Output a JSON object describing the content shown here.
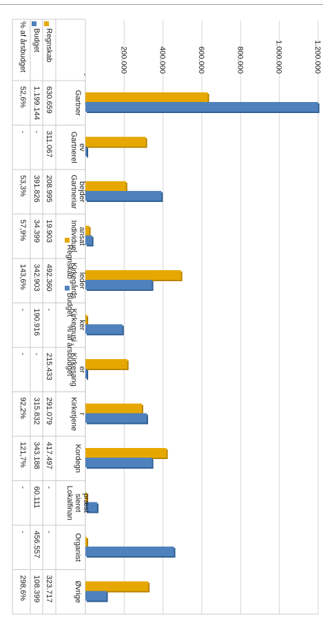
{
  "chart_data": {
    "type": "bar",
    "orientation": "rotated-90",
    "categories": [
      "Gartner",
      "Gartnerel ev",
      "Gartneriar bejder",
      "Individuel ansat",
      "Kirkegårds leder",
      "Kirkemusi ker",
      "Kirkesang er",
      "Kirketjene r",
      "Kordegn",
      "Lokalfinan sieret præst",
      "Organist",
      "Øvrige"
    ],
    "series": [
      {
        "name": "Regnskab",
        "color": "#e6a800",
        "values": [
          630659,
          311067,
          208995,
          19903,
          492360,
          0,
          215433,
          291079,
          417497,
          0,
          0,
          323717
        ]
      },
      {
        "name": "Budget",
        "color": "#4f81bd",
        "values": [
          1199144,
          0,
          391826,
          34399,
          342903,
          190916,
          0,
          315832,
          343188,
          60111,
          456557,
          108399
        ]
      }
    ],
    "ylim": [
      0,
      1200000
    ],
    "yticks": [
      "-",
      "200.000",
      "400.000",
      "600.000",
      "800.000",
      "1.000.000",
      "1.200.000"
    ],
    "grid": true,
    "legend": {
      "position": "bottom",
      "entries": [
        "Regnskab",
        "Budget",
        "% af årsbudget"
      ]
    },
    "table": {
      "row_labels": [
        "Regnskab",
        "Budget",
        "% af årsbudget"
      ],
      "rows": [
        [
          "630.659",
          "311.067",
          "208.995",
          "19.903",
          "492.360",
          "-",
          "215.433",
          "291.079",
          "417.497",
          "-",
          "-",
          "323.717"
        ],
        [
          "1.199.144",
          "-",
          "391.826",
          "34.399",
          "342.903",
          "190.916",
          "-",
          "315.832",
          "343.188",
          "60.111",
          "456.557",
          "108.399"
        ],
        [
          "52,6%",
          "-",
          "53,3%",
          "57,9%",
          "143,6%",
          "-",
          "-",
          "92,2%",
          "121,7%",
          "-",
          "-",
          "298,6%"
        ]
      ]
    }
  }
}
